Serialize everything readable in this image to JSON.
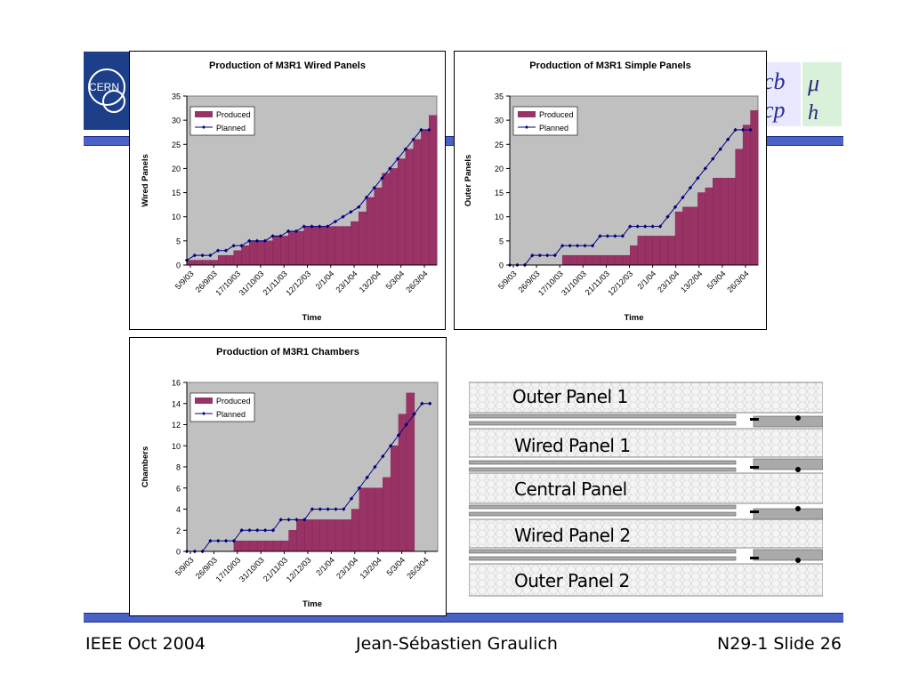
{
  "footer": {
    "left": "IEEE Oct 2004",
    "center": "Jean-Sébastien Graulich",
    "right": "N29-1 Slide 26"
  },
  "logos": {
    "left_text": "CERN",
    "right_icon": "lhcb-mu-logo"
  },
  "panel_diagram": {
    "labels": [
      "Outer Panel 1",
      "Wired Panel 1",
      "Central Panel",
      "Wired Panel 2",
      "Outer Panel 2"
    ]
  },
  "colors": {
    "produced": "#993366",
    "planned": "#000080",
    "plot_bg": "#c0c0c0",
    "rule": "#4a62c8"
  },
  "chart_data": [
    {
      "type": "bar",
      "title": "Production of M3R1 Wired Panels",
      "xlabel": "Time",
      "ylabel": "Wired Panels",
      "ylim": [
        0,
        35
      ],
      "yticks": [
        0,
        5,
        10,
        15,
        20,
        25,
        30,
        35
      ],
      "tick_labels": [
        "5/9/03",
        "26/9/03",
        "17/10/03",
        "31/10/03",
        "21/11/03",
        "12/12/03",
        "2/1/04",
        "23/1/04",
        "13/2/04",
        "5/3/04",
        "26/3/04"
      ],
      "legend": [
        "Produced",
        "Planned"
      ],
      "legend_position": "top-left",
      "grid": false,
      "series": [
        {
          "name": "Produced",
          "values": [
            1,
            1,
            1,
            1,
            2,
            2,
            3,
            4,
            5,
            5,
            5,
            6,
            6,
            7,
            7,
            8,
            8,
            8,
            8,
            8,
            8,
            9,
            11,
            14,
            16,
            19,
            20,
            22,
            24,
            26,
            28,
            31
          ]
        },
        {
          "name": "Planned",
          "values": [
            1,
            2,
            2,
            2,
            3,
            3,
            4,
            4,
            5,
            5,
            5,
            6,
            6,
            7,
            7,
            8,
            8,
            8,
            8,
            9,
            10,
            11,
            12,
            14,
            16,
            18,
            20,
            22,
            24,
            26,
            28,
            28
          ]
        }
      ]
    },
    {
      "type": "bar",
      "title": "Production of M3R1 Simple Panels",
      "xlabel": "Time",
      "ylabel": "Outer Panels",
      "ylim": [
        0,
        35
      ],
      "yticks": [
        0,
        5,
        10,
        15,
        20,
        25,
        30,
        35
      ],
      "tick_labels": [
        "5/9/03",
        "26/9/03",
        "17/10/03",
        "31/10/03",
        "21/11/03",
        "12/12/03",
        "2/1/04",
        "23/1/04",
        "13/2/04",
        "5/3/04",
        "26/3/04"
      ],
      "legend": [
        "Produced",
        "Planned"
      ],
      "legend_position": "top-left",
      "grid": false,
      "series": [
        {
          "name": "Produced",
          "values": [
            0,
            0,
            0,
            0,
            0,
            0,
            0,
            2,
            2,
            2,
            2,
            2,
            2,
            2,
            2,
            2,
            4,
            6,
            6,
            6,
            6,
            6,
            11,
            12,
            12,
            15,
            16,
            18,
            18,
            18,
            24,
            29,
            32
          ]
        },
        {
          "name": "Planned",
          "values": [
            0,
            0,
            0,
            2,
            2,
            2,
            2,
            4,
            4,
            4,
            4,
            4,
            6,
            6,
            6,
            6,
            8,
            8,
            8,
            8,
            8,
            10,
            12,
            14,
            16,
            18,
            20,
            22,
            24,
            26,
            28,
            28,
            28
          ]
        }
      ]
    },
    {
      "type": "bar",
      "title": "Production of M3R1 Chambers",
      "xlabel": "Time",
      "ylabel": "Chambers",
      "ylim": [
        0,
        16
      ],
      "yticks": [
        0,
        2,
        4,
        6,
        8,
        10,
        12,
        14,
        16
      ],
      "tick_labels": [
        "5/9/03",
        "26/9/03",
        "17/10/03",
        "31/10/03",
        "21/11/03",
        "12/12/03",
        "2/1/04",
        "23/1/04",
        "13/2/04",
        "5/3/04",
        "26/3/04"
      ],
      "legend": [
        "Produced",
        "Planned"
      ],
      "legend_position": "top-left",
      "grid": false,
      "series": [
        {
          "name": "Produced",
          "values": [
            0,
            0,
            0,
            0,
            0,
            0,
            1,
            1,
            1,
            1,
            1,
            1,
            1,
            2,
            3,
            3,
            3,
            3,
            3,
            3,
            3,
            4,
            6,
            6,
            6,
            7,
            10,
            13,
            15
          ]
        },
        {
          "name": "Planned",
          "values": [
            0,
            0,
            0,
            1,
            1,
            1,
            1,
            2,
            2,
            2,
            2,
            2,
            3,
            3,
            3,
            3,
            4,
            4,
            4,
            4,
            4,
            5,
            6,
            7,
            8,
            9,
            10,
            11,
            12,
            13,
            14,
            14
          ]
        }
      ]
    }
  ]
}
